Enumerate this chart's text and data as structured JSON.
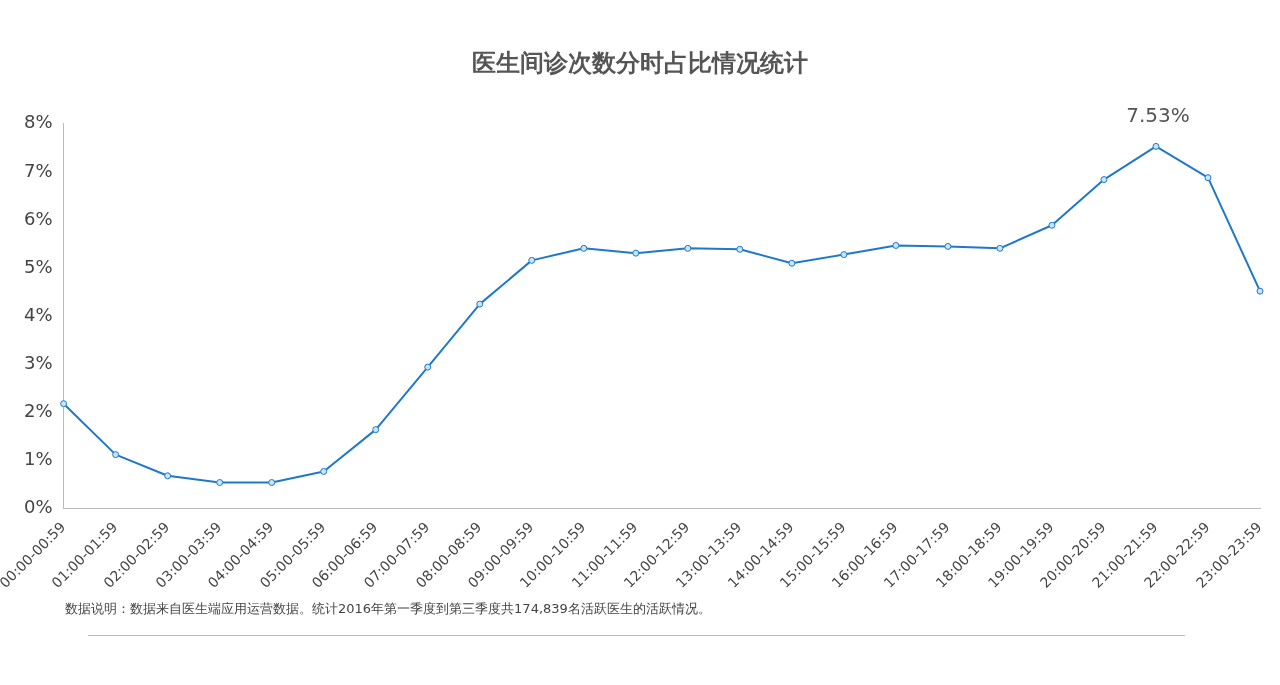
{
  "chart_data": {
    "type": "line",
    "title": "医生间诊次数分时占比情况统计",
    "categories": [
      "00:00-00:59",
      "01:00-01:59",
      "02:00-02:59",
      "03:00-03:59",
      "04:00-04:59",
      "05:00-05:59",
      "06:00-06:59",
      "07:00-07:59",
      "08:00-08:59",
      "09:00-09:59",
      "10:00-10:59",
      "11:00-11:59",
      "12:00-12:59",
      "13:00-13:59",
      "14:00-14:59",
      "15:00-15:59",
      "16:00-16:59",
      "17:00-17:59",
      "18:00-18:59",
      "19:00-19:59",
      "20:00-20:59",
      "21:00-21:59",
      "22:00-22:59",
      "23:00-23:59"
    ],
    "series": [
      {
        "color": "#1f78c8",
        "values": [
          2.18,
          1.12,
          0.68,
          0.54,
          0.54,
          0.77,
          1.64,
          2.94,
          4.25,
          5.16,
          5.41,
          5.31,
          5.41,
          5.39,
          5.1,
          5.28,
          5.47,
          5.45,
          5.41,
          5.89,
          6.84,
          7.53,
          6.88,
          4.52
        ],
        "value_labels": [
          null,
          null,
          null,
          null,
          null,
          null,
          null,
          null,
          null,
          null,
          null,
          null,
          null,
          null,
          null,
          null,
          null,
          null,
          null,
          null,
          null,
          "7.53%",
          null,
          null
        ]
      }
    ],
    "ylim": [
      0,
      8
    ],
    "yticks": [
      {
        "value": 0,
        "label": "0%"
      },
      {
        "value": 1,
        "label": "1%"
      },
      {
        "value": 2,
        "label": "2%"
      },
      {
        "value": 3,
        "label": "3%"
      },
      {
        "value": 4,
        "label": "4%"
      },
      {
        "value": 5,
        "label": "5%"
      },
      {
        "value": 6,
        "label": "6%"
      },
      {
        "value": 7,
        "label": "7%"
      },
      {
        "value": 8,
        "label": "8%"
      }
    ],
    "grid": false,
    "legend": false,
    "marker": "circle",
    "line_style": "solid",
    "annotations": [
      "数据说明：数据来自医生端应用运营数据。统计2016年第一季度到第三季度共174,839名活跃医生的活跃情况。"
    ]
  }
}
